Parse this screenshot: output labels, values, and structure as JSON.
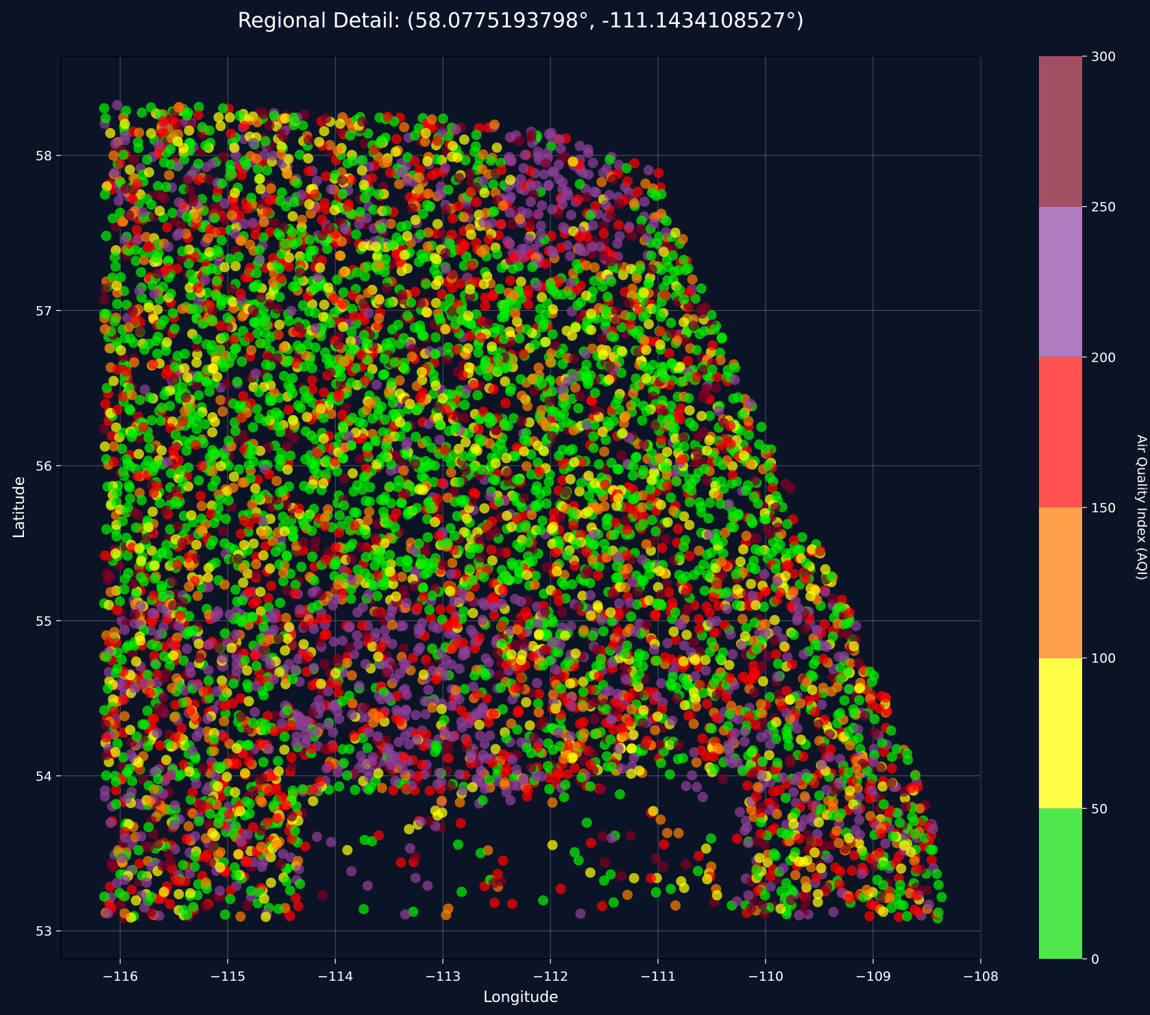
{
  "chart_data": {
    "type": "scatter",
    "title": "Regional Detail: (58.0775193798°, -111.1434108527°)",
    "xlabel": "Longitude",
    "ylabel": "Latitude",
    "xlim": [
      -116.55,
      -108.0
    ],
    "ylim": [
      52.82,
      58.64
    ],
    "xticks": [
      -116,
      -115,
      -114,
      -113,
      -112,
      -111,
      -110,
      -109,
      -108
    ],
    "xtick_labels": [
      "−116",
      "−115",
      "−114",
      "−113",
      "−112",
      "−111",
      "−110",
      "−109",
      "−108"
    ],
    "yticks": [
      53,
      54,
      55,
      56,
      57,
      58
    ],
    "ytick_labels": [
      "53",
      "54",
      "55",
      "56",
      "57",
      "58"
    ],
    "grid": true,
    "background_color": "#0b1426",
    "colorbar": {
      "label": "Air Quality Index (AQI)",
      "range": [
        0,
        300
      ],
      "ticks": [
        0,
        50,
        100,
        150,
        200,
        250,
        300
      ],
      "tick_labels": [
        "0",
        "50",
        "100",
        "150",
        "200",
        "250",
        "300"
      ],
      "bands": [
        {
          "from": 0,
          "to": 50,
          "color": "#4ee84a"
        },
        {
          "from": 50,
          "to": 100,
          "color": "#ffff47"
        },
        {
          "from": 100,
          "to": 150,
          "color": "#ffa04a"
        },
        {
          "from": 150,
          "to": 200,
          "color": "#ff5151"
        },
        {
          "from": 200,
          "to": 250,
          "color": "#b07bbf"
        },
        {
          "from": 250,
          "to": 300,
          "color": "#a34f63"
        }
      ]
    },
    "point_colors": {
      "good": "#00ee00",
      "moderate": "#ffff00",
      "usg": "#ff7e00",
      "unhealthy": "#ff0000",
      "very_unhealthy": "#8f3f97",
      "hazardous": "#7e0023"
    },
    "region_outline": [
      [
        -116.15,
        58.33
      ],
      [
        -115.5,
        58.33
      ],
      [
        -114.0,
        58.26
      ],
      [
        -113.0,
        58.25
      ],
      [
        -112.0,
        58.15
      ],
      [
        -111.0,
        57.9
      ],
      [
        -110.5,
        57.0
      ],
      [
        -110.0,
        56.2
      ],
      [
        -109.6,
        55.6
      ],
      [
        -109.3,
        55.2
      ],
      [
        -109.0,
        54.7
      ],
      [
        -108.7,
        54.2
      ],
      [
        -108.4,
        53.6
      ],
      [
        -108.35,
        53.08
      ],
      [
        -110.0,
        53.1
      ],
      [
        -116.15,
        53.08
      ]
    ],
    "sparse_areas": [
      {
        "lon": [
          -114.3,
          -111.5
        ],
        "lat": [
          53.05,
          53.9
        ]
      },
      {
        "lon": [
          -111.5,
          -110.2
        ],
        "lat": [
          53.05,
          54.0
        ]
      }
    ]
  }
}
